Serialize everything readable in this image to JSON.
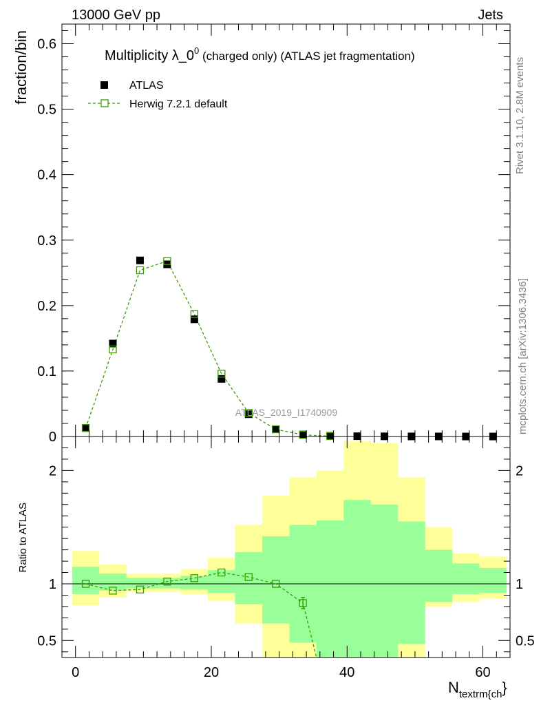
{
  "header": {
    "left": "13000 GeV pp",
    "right": "Jets"
  },
  "side_labels": {
    "rivet": "Rivet 3.1.10,  2.8M events",
    "mcplots": "mcplots.cern.ch [arXiv:1306.3436]"
  },
  "colors": {
    "mc_line": "#3a9a00",
    "data_marker": "#000000",
    "band_outer": "#ffff99",
    "band_inner": "#99ff99"
  },
  "chart_data": [
    {
      "type": "scatter",
      "title_main": "Multiplicity λ_0",
      "title_sup": "0",
      "title_rest": " (charged only) (ATLAS jet fragmentation)",
      "ylabel": "fraction/bin",
      "watermark": "ATLAS_2019_I1740909",
      "xlim": [
        -2,
        64
      ],
      "ylim": [
        0,
        0.63
      ],
      "yticks": [
        0,
        0.1,
        0.2,
        0.3,
        0.4,
        0.5,
        0.6
      ],
      "ytick_labels": [
        "0",
        "0.1",
        "0.2",
        "0.3",
        "0.4",
        "0.5",
        "0.6"
      ],
      "legend": [
        {
          "name": "ATLAS",
          "style": "filled-square"
        },
        {
          "name": "Herwig 7.2.1 default",
          "style": "dashed-open-square"
        }
      ],
      "x": [
        1.5,
        5.5,
        9.5,
        13.5,
        17.5,
        21.5,
        25.5,
        29.5,
        33.5,
        37.5,
        41.5,
        45.5,
        49.5,
        53.5,
        57.5,
        61.5
      ],
      "series": [
        {
          "name": "ATLAS",
          "values": [
            0.013,
            0.142,
            0.269,
            0.263,
            0.179,
            0.088,
            0.034,
            0.011,
            0.003,
            0.001,
            0.0004,
            0.0002,
            0.0001,
            0.0001,
            0.0,
            0.0
          ]
        },
        {
          "name": "Herwig 7.2.1 default",
          "values": [
            0.013,
            0.133,
            0.254,
            0.268,
            0.187,
            0.096,
            0.036,
            0.011,
            0.0025,
            0.0005
          ]
        }
      ]
    },
    {
      "type": "scatter",
      "ylabel": "Ratio to ATLAS",
      "xlabel_main": "N",
      "xlabel_sub": "textrm{ch",
      "xlabel_close": "}",
      "xlim": [
        -2,
        64
      ],
      "ylim": [
        0.35,
        2.3
      ],
      "yticks": [
        0.5,
        1,
        2
      ],
      "ytick_labels": [
        "0.5",
        "1",
        "2"
      ],
      "xticks": [
        0,
        20,
        40,
        60
      ],
      "xtick_labels": [
        "0",
        "20",
        "40",
        "60"
      ],
      "reference": 1,
      "bins": [
        [
          -0.5,
          3.5
        ],
        [
          3.5,
          7.5
        ],
        [
          7.5,
          11.5
        ],
        [
          11.5,
          15.5
        ],
        [
          15.5,
          19.5
        ],
        [
          19.5,
          23.5
        ],
        [
          23.5,
          27.5
        ],
        [
          27.5,
          31.5
        ],
        [
          31.5,
          35.5
        ],
        [
          35.5,
          39.5
        ],
        [
          39.5,
          43.5
        ],
        [
          43.5,
          47.5
        ],
        [
          47.5,
          51.5
        ],
        [
          51.5,
          55.5
        ],
        [
          55.5,
          59.5
        ],
        [
          59.5,
          63.5
        ]
      ],
      "band_outer": [
        [
          0.81,
          1.29
        ],
        [
          0.88,
          1.17
        ],
        [
          0.93,
          1.09
        ],
        [
          0.93,
          1.09
        ],
        [
          0.91,
          1.13
        ],
        [
          0.85,
          1.23
        ],
        [
          0.65,
          1.52
        ],
        [
          0.3,
          1.78
        ],
        [
          0.3,
          1.94
        ],
        [
          0.3,
          2.0
        ],
        [
          0.3,
          2.26
        ],
        [
          0.3,
          2.24
        ],
        [
          0.3,
          1.94
        ],
        [
          0.8,
          1.5
        ],
        [
          0.84,
          1.27
        ],
        [
          0.87,
          1.24
        ]
      ],
      "band_inner": [
        [
          0.91,
          1.15
        ],
        [
          0.94,
          1.09
        ],
        [
          0.96,
          1.05
        ],
        [
          0.96,
          1.05
        ],
        [
          0.95,
          1.07
        ],
        [
          0.92,
          1.12
        ],
        [
          0.82,
          1.28
        ],
        [
          0.65,
          1.42
        ],
        [
          0.48,
          1.52
        ],
        [
          0.35,
          1.56
        ],
        [
          0.3,
          1.74
        ],
        [
          0.3,
          1.7
        ],
        [
          0.47,
          1.55
        ],
        [
          0.84,
          1.3
        ],
        [
          0.91,
          1.18
        ],
        [
          0.92,
          1.14
        ]
      ],
      "ratio_x": [
        1.5,
        5.5,
        9.5,
        13.5,
        17.5,
        21.5,
        25.5,
        29.5,
        33.5
      ],
      "ratio_values": [
        1.0,
        0.94,
        0.95,
        1.02,
        1.05,
        1.1,
        1.06,
        1.0,
        0.83
      ],
      "ratio_errors": [
        0.01,
        0.01,
        0.01,
        0.01,
        0.01,
        0.01,
        0.01,
        0.01,
        0.05
      ],
      "ratio_dropoff": [
        [
          35.5,
          0.3
        ]
      ]
    }
  ]
}
